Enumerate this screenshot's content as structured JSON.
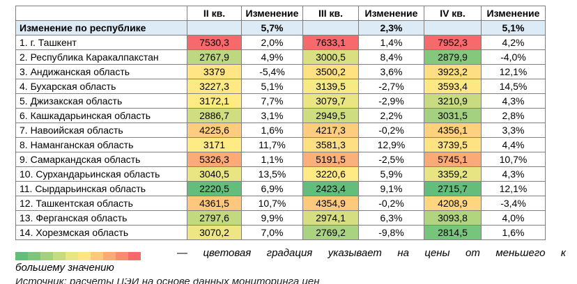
{
  "table": {
    "headers": [
      "",
      "II кв.",
      "Изменение",
      "III кв.",
      "Изменение",
      "IV кв.",
      "Изменение"
    ],
    "summary": {
      "label": "Изменение по республике",
      "changes": [
        "5,7%",
        "2,3%",
        "5,1%"
      ]
    },
    "rows": [
      {
        "name": "1. г. Ташкент",
        "q2": "7530,3",
        "c2": "2,0%",
        "q3": "7633,1",
        "c3": "1,4%",
        "q4": "7952,3",
        "c4": "4,2%"
      },
      {
        "name": "2. Республика Каракалпакстан",
        "q2": "2767,9",
        "c2": "4,9%",
        "q3": "3000,5",
        "c3": "8,4%",
        "q4": "2879,9",
        "c4": "-4,0%"
      },
      {
        "name": "3. Андижанская область",
        "q2": "3379",
        "c2": "-5,4%",
        "q3": "3500,2",
        "c3": "3,6%",
        "q4": "3923,2",
        "c4": "12,1%"
      },
      {
        "name": "4. Бухарская область",
        "q2": "3227,3",
        "c2": "5,1%",
        "q3": "3139,5",
        "c3": "-2,7%",
        "q4": "3593,4",
        "c4": "14,5%"
      },
      {
        "name": "5. Джизакская область",
        "q2": "3172,1",
        "c2": "7,7%",
        "q3": "3079,7",
        "c3": "-2,9%",
        "q4": "3210,9",
        "c4": "4,3%"
      },
      {
        "name": "6. Кашкадарьинская область",
        "q2": "2886,7",
        "c2": "3,1%",
        "q3": "2949,5",
        "c3": "2,2%",
        "q4": "3031,5",
        "c4": "2,8%"
      },
      {
        "name": "7. Навоийская область",
        "q2": "4225,6",
        "c2": "1,6%",
        "q3": "4217,3",
        "c3": "-0,2%",
        "q4": "4356,1",
        "c4": "3,3%"
      },
      {
        "name": "8. Наманганская область",
        "q2": "3171",
        "c2": "11,7%",
        "q3": "3581,3",
        "c3": "12,9%",
        "q4": "3739,5",
        "c4": "4,4%"
      },
      {
        "name": "9. Самаркандская область",
        "q2": "5326,3",
        "c2": "1,1%",
        "q3": "5191,5",
        "c3": "-2,5%",
        "q4": "5745,1",
        "c4": "10,7%"
      },
      {
        "name": "10. Сурхандарьинская область",
        "q2": "3040,5",
        "c2": "13,5%",
        "q3": "3220,6",
        "c3": "5,9%",
        "q4": "3359,2",
        "c4": "4,3%"
      },
      {
        "name": "11. Сырдарьинская область",
        "q2": "2220,5",
        "c2": "6,9%",
        "q3": "2423,4",
        "c3": "9,1%",
        "q4": "2715,7",
        "c4": "12,1%"
      },
      {
        "name": "12. Ташкентская область",
        "q2": "4361,5",
        "c2": "10,7%",
        "q3": "4354,9",
        "c3": "-0,2%",
        "q4": "4208,9",
        "c4": "-3,4%"
      },
      {
        "name": "13. Ферганская область",
        "q2": "2797,6",
        "c2": "9,9%",
        "q3": "2974,1",
        "c3": "6,3%",
        "q4": "3093,8",
        "c4": "4,0%"
      },
      {
        "name": "14. Хорезмская область",
        "q2": "3070,2",
        "c2": "7,0%",
        "q3": "2769,2",
        "c3": "-9,8%",
        "q4": "2814,5",
        "c4": "1,6%"
      }
    ]
  },
  "colors": {
    "summary_bg": "#ddebf7",
    "scale_low": "#63be7b",
    "scale_mid": "#ffeb84",
    "scale_high": "#f8696b"
  },
  "legend": {
    "text_line1": "— цветовая градация указывает на цены от меньшего к",
    "text_line2": "большему значению",
    "gradient": [
      "#63be7b",
      "#7fc67c",
      "#a3d17e",
      "#c6dc80",
      "#e8e682",
      "#ffe683",
      "#fdc97d",
      "#fbab76",
      "#fa8d70",
      "#f8696b"
    ]
  },
  "footnote": "Источник: расчёты ЦЭИ на основе данных мониторинга цен"
}
